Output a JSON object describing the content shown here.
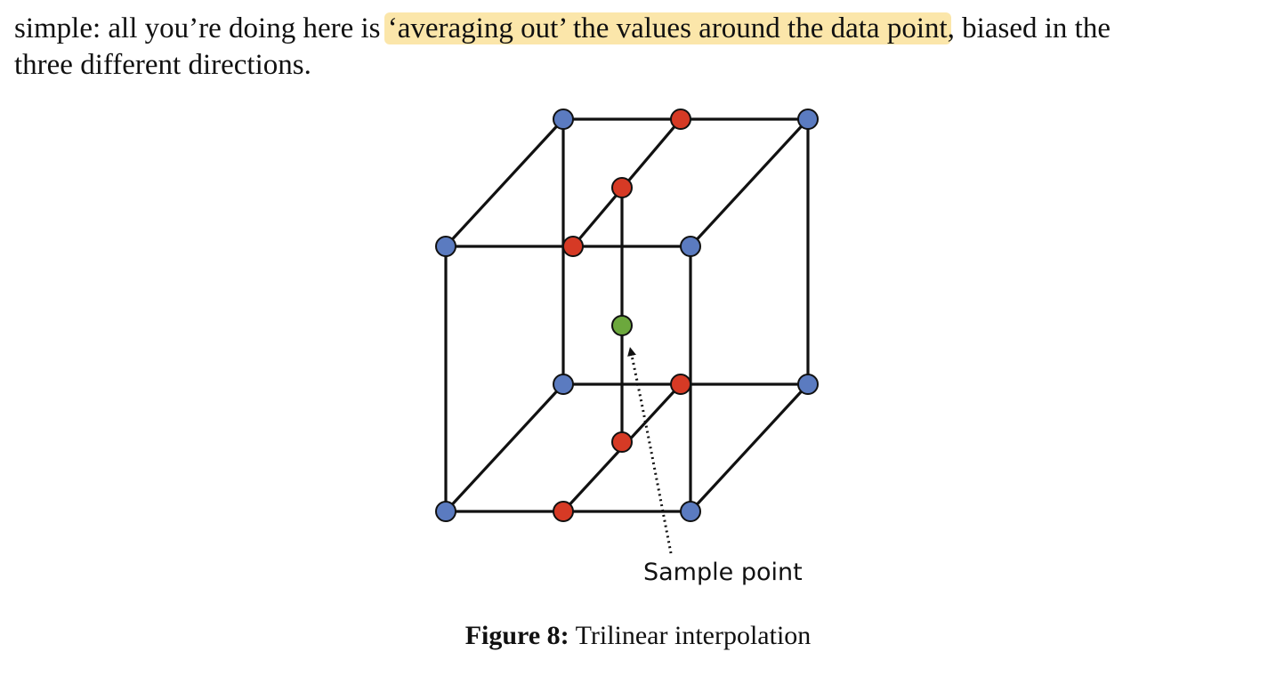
{
  "paragraph": {
    "line1_before": "simple: all you’re doing here is ",
    "line1_highlight": "‘averaging out’ the values around the data point",
    "line1_after": ", biased in the",
    "line2": "three different directions."
  },
  "figure": {
    "annotation": "Sample point",
    "caption_label": "Figure 8:",
    "caption_text": " Trilinear interpolation",
    "colors": {
      "corner": "#5b7bc0",
      "edge_midpoint": "#d63a25",
      "sample": "#6ca83d",
      "highlight": "#fbe6aa"
    }
  }
}
